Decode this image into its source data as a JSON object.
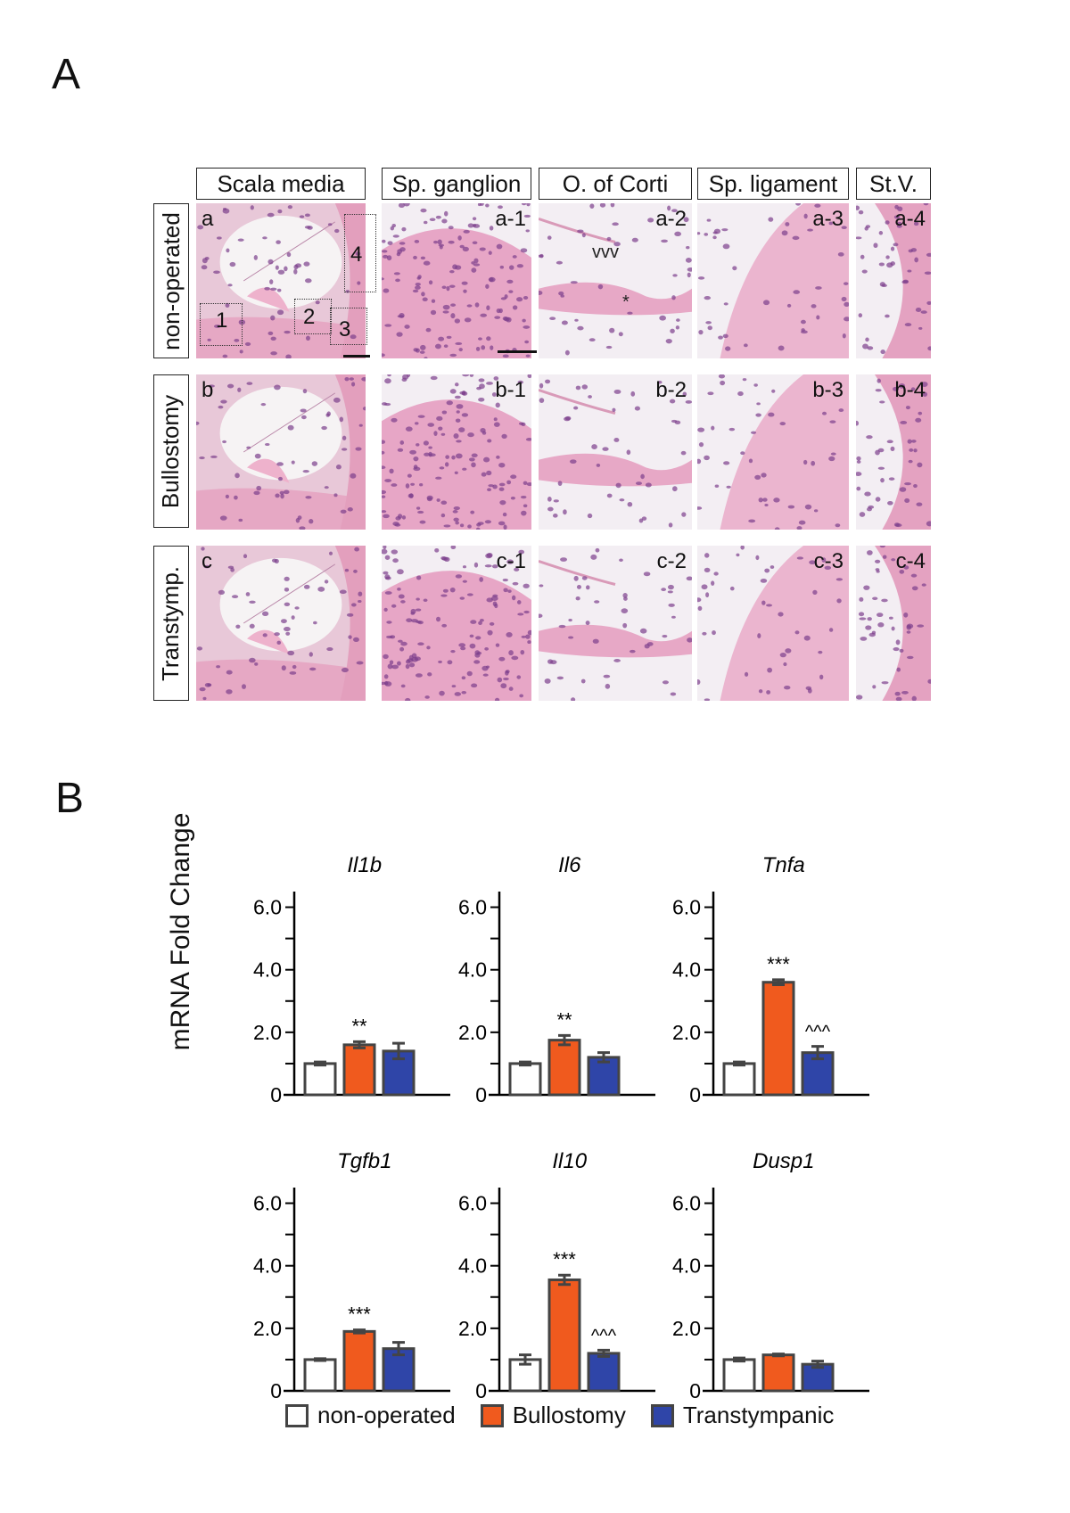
{
  "panel_a": {
    "letter": "A",
    "columns": [
      "Scala media",
      "Sp. ganglion",
      "O. of Corti",
      "Sp. ligament",
      "St.V."
    ],
    "rows": [
      {
        "label": "non-operated",
        "tiles": [
          "a",
          "a-1",
          "a-2",
          "a-3",
          "a-4"
        ]
      },
      {
        "label": "Bullostomy",
        "tiles": [
          "b",
          "b-1",
          "b-2",
          "b-3",
          "b-4"
        ]
      },
      {
        "label": "Transtymp.",
        "tiles": [
          "c",
          "c-1",
          "c-2",
          "c-3",
          "c-4"
        ]
      }
    ],
    "insets": [
      "1",
      "2",
      "3",
      "4"
    ],
    "markers": {
      "arrowheads": "vvv",
      "asterisk": "*"
    }
  },
  "panel_b": {
    "letter": "B",
    "ylabel": "mRNA Fold Change",
    "legend": [
      {
        "label": "non-operated",
        "color": "#ffffff"
      },
      {
        "label": "Bullostomy",
        "color": "#f05a1e"
      },
      {
        "label": "Transtympanic",
        "color": "#2f45a8"
      }
    ]
  },
  "chart_data": [
    {
      "type": "bar",
      "title": "Il1b",
      "categories": [
        "non-operated",
        "Bullostomy",
        "Transtympanic"
      ],
      "values": [
        1.0,
        1.6,
        1.4
      ],
      "errors": [
        0.05,
        0.1,
        0.25
      ],
      "annotations": [
        "",
        "**",
        ""
      ],
      "yticks": [
        "0",
        "2.0",
        "4.0",
        "6.0"
      ],
      "ylim": [
        0,
        6.5
      ]
    },
    {
      "type": "bar",
      "title": "Il6",
      "categories": [
        "non-operated",
        "Bullostomy",
        "Transtympanic"
      ],
      "values": [
        1.0,
        1.75,
        1.2
      ],
      "errors": [
        0.05,
        0.15,
        0.15
      ],
      "annotations": [
        "",
        "**",
        ""
      ],
      "yticks": [
        "0",
        "2.0",
        "4.0",
        "6.0"
      ],
      "ylim": [
        0,
        6.5
      ]
    },
    {
      "type": "bar",
      "title": "Tnfa",
      "categories": [
        "non-operated",
        "Bullostomy",
        "Transtympanic"
      ],
      "values": [
        1.0,
        3.6,
        1.35
      ],
      "errors": [
        0.05,
        0.08,
        0.2
      ],
      "annotations": [
        "",
        "***",
        "^^^"
      ],
      "yticks": [
        "0",
        "2.0",
        "4.0",
        "6.0"
      ],
      "ylim": [
        0,
        6.5
      ]
    },
    {
      "type": "bar",
      "title": "Tgfb1",
      "categories": [
        "non-operated",
        "Bullostomy",
        "Transtympanic"
      ],
      "values": [
        1.0,
        1.9,
        1.35
      ],
      "errors": [
        0.03,
        0.05,
        0.2
      ],
      "annotations": [
        "",
        "***",
        ""
      ],
      "yticks": [
        "0",
        "2.0",
        "4.0",
        "6.0"
      ],
      "ylim": [
        0,
        6.5
      ]
    },
    {
      "type": "bar",
      "title": "Il10",
      "categories": [
        "non-operated",
        "Bullostomy",
        "Transtympanic"
      ],
      "values": [
        1.0,
        3.55,
        1.2
      ],
      "errors": [
        0.15,
        0.15,
        0.1
      ],
      "annotations": [
        "",
        "***",
        "^^^"
      ],
      "yticks": [
        "0",
        "2.0",
        "4.0",
        "6.0"
      ],
      "ylim": [
        0,
        6.5
      ]
    },
    {
      "type": "bar",
      "title": "Dusp1",
      "categories": [
        "non-operated",
        "Bullostomy",
        "Transtympanic"
      ],
      "values": [
        1.0,
        1.15,
        0.85
      ],
      "errors": [
        0.05,
        0.03,
        0.1
      ],
      "annotations": [
        "",
        "",
        ""
      ],
      "yticks": [
        "0",
        "2.0",
        "4.0",
        "6.0"
      ],
      "ylim": [
        0,
        6.5
      ]
    }
  ]
}
